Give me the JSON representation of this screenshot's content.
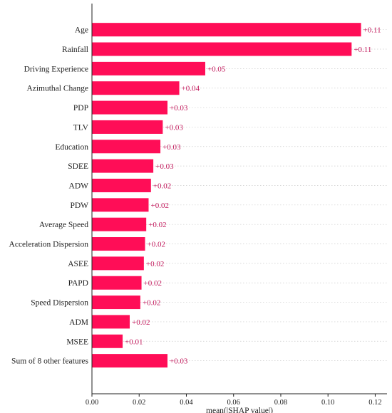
{
  "chart_data": {
    "type": "bar",
    "orientation": "horizontal",
    "categories": [
      "Age",
      "Rainfall",
      "Driving Experience",
      "Azimuthal Change",
      "PDP",
      "TLV",
      "Education",
      "SDEE",
      "ADW",
      "PDW",
      "Average Speed",
      "Acceleration Dispersion",
      "ASEE",
      "PAPD",
      "Speed Dispersion",
      "ADM",
      "MSEE",
      "Sum of 8 other features"
    ],
    "values": [
      0.114,
      0.11,
      0.048,
      0.037,
      0.032,
      0.03,
      0.029,
      0.026,
      0.025,
      0.024,
      0.023,
      0.0225,
      0.022,
      0.021,
      0.0205,
      0.016,
      0.013,
      0.032
    ],
    "value_labels": [
      "+0.11",
      "+0.11",
      "+0.05",
      "+0.04",
      "+0.03",
      "+0.03",
      "+0.03",
      "+0.03",
      "+0.02",
      "+0.02",
      "+0.02",
      "+0.02",
      "+0.02",
      "+0.02",
      "+0.02",
      "+0.02",
      "+0.01",
      "+0.03"
    ],
    "xlabel": "mean(|SHAP value|)",
    "ylabel": "",
    "title": "",
    "xlim": [
      0,
      0.125
    ],
    "xticks": [
      "0.00",
      "0.02",
      "0.04",
      "0.06",
      "0.08",
      "0.10",
      "0.12"
    ],
    "grid": "horizontal dotted",
    "bar_color": "#ff0d57",
    "value_label_color": "#c2185b",
    "axis_color": "#222222"
  }
}
